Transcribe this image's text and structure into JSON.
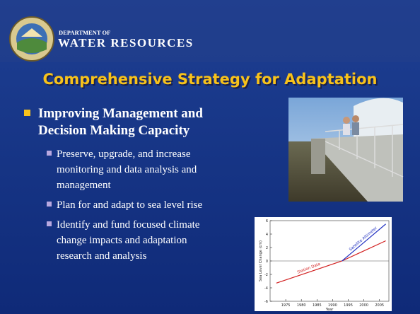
{
  "header": {
    "org_line1": "DEPARTMENT OF",
    "org_line2": "WATER RESOURCES"
  },
  "title": "Comprehensive Strategy for Adaptation",
  "bullets": [
    {
      "text_lines": [
        "Improving Management and",
        "Decision Making Capacity"
      ],
      "sub_bullets": [
        [
          "Preserve, upgrade, and increase",
          "monitoring and data analysis and",
          "management"
        ],
        [
          "Plan for and adapt to sea level rise"
        ],
        [
          "Identify and fund focused climate",
          "change impacts and adaptation",
          "research and analysis"
        ]
      ]
    }
  ],
  "figure": {
    "x_label": "Year",
    "y_label": "Sea Level Change (cm)",
    "xlim": [
      1970,
      2008
    ],
    "ylim": [
      -6,
      6
    ],
    "xticks": [
      1975,
      1980,
      1985,
      1990,
      1995,
      2000,
      2005
    ],
    "yticks": [
      -6,
      -4,
      -2,
      0,
      2,
      4,
      6
    ],
    "series": [
      {
        "name": "Station Data",
        "color": "#d22020",
        "x": [
          1972,
          1993,
          2007
        ],
        "values": [
          -3.3,
          0,
          3
        ]
      },
      {
        "name": "Satellite Altimeter",
        "color": "#2030c0",
        "x": [
          1993,
          2007
        ],
        "values": [
          0,
          5.5
        ]
      }
    ]
  }
}
